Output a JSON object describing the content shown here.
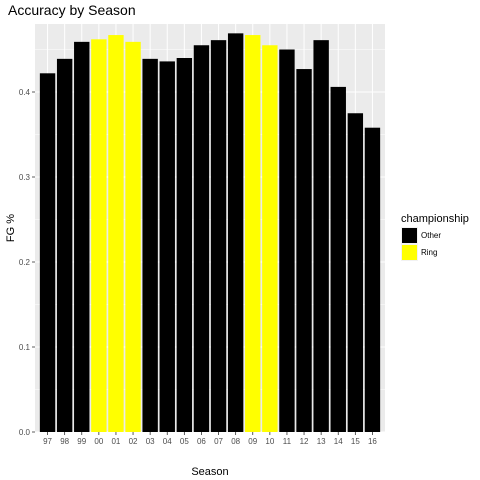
{
  "chart_data": {
    "type": "bar",
    "title": "Accuracy by Season",
    "xlabel": "Season",
    "ylabel": "FG %",
    "ylim": [
      0,
      0.48
    ],
    "yticks": [
      "0.0",
      "0.1",
      "0.2",
      "0.3",
      "0.4"
    ],
    "grid": true,
    "legend_position": "right",
    "categories": [
      "97",
      "98",
      "99",
      "00",
      "01",
      "02",
      "03",
      "04",
      "05",
      "06",
      "07",
      "08",
      "09",
      "10",
      "11",
      "12",
      "13",
      "14",
      "15",
      "16"
    ],
    "values": [
      0.422,
      0.439,
      0.459,
      0.462,
      0.467,
      0.459,
      0.439,
      0.436,
      0.44,
      0.455,
      0.461,
      0.469,
      0.467,
      0.455,
      0.45,
      0.427,
      0.461,
      0.406,
      0.375,
      0.358
    ],
    "groups": [
      "Other",
      "Other",
      "Other",
      "Ring",
      "Ring",
      "Ring",
      "Other",
      "Other",
      "Other",
      "Other",
      "Other",
      "Other",
      "Ring",
      "Ring",
      "Other",
      "Other",
      "Other",
      "Other",
      "Other",
      "Other"
    ],
    "legend": {
      "title": "championship",
      "entries": [
        {
          "name": "Other",
          "color": "#000000"
        },
        {
          "name": "Ring",
          "color": "#ffff00"
        }
      ]
    }
  }
}
